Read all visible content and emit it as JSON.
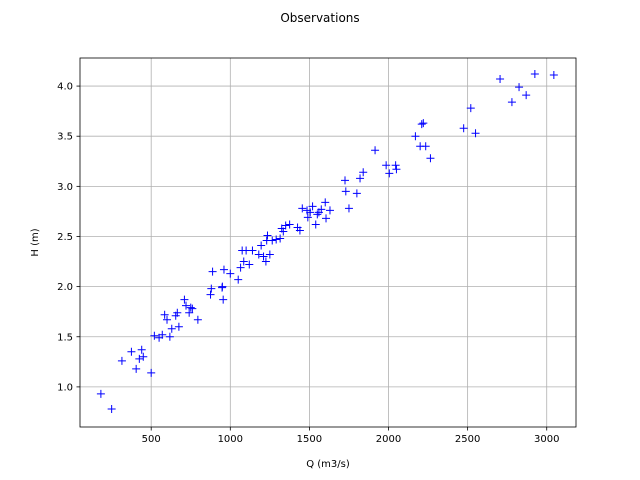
{
  "chart_data": {
    "type": "scatter",
    "title": "Observations",
    "xlabel": "Q (m3/s)",
    "ylabel": "H (m)",
    "xlim": [
      50,
      3185
    ],
    "ylim": [
      0.6,
      4.28
    ],
    "xticks": [
      500,
      1000,
      1500,
      2000,
      2500,
      3000
    ],
    "yticks": [
      1.0,
      1.5,
      2.0,
      2.5,
      3.0,
      3.5,
      4.0
    ],
    "xtick_labels": [
      "500",
      "1000",
      "1500",
      "2000",
      "2500",
      "3000"
    ],
    "ytick_labels": [
      "1.0",
      "1.5",
      "2.0",
      "2.5",
      "3.0",
      "3.5",
      "4.0"
    ],
    "grid": true,
    "marker": "+",
    "color": "#0000ff",
    "points": [
      [
        182,
        0.93
      ],
      [
        250,
        0.78
      ],
      [
        315,
        1.26
      ],
      [
        375,
        1.35
      ],
      [
        405,
        1.18
      ],
      [
        425,
        1.28
      ],
      [
        440,
        1.37
      ],
      [
        450,
        1.3
      ],
      [
        500,
        1.14
      ],
      [
        520,
        1.51
      ],
      [
        550,
        1.49
      ],
      [
        570,
        1.52
      ],
      [
        585,
        1.72
      ],
      [
        600,
        1.67
      ],
      [
        618,
        1.5
      ],
      [
        630,
        1.58
      ],
      [
        655,
        1.71
      ],
      [
        665,
        1.74
      ],
      [
        675,
        1.6
      ],
      [
        710,
        1.87
      ],
      [
        720,
        1.81
      ],
      [
        740,
        1.74
      ],
      [
        750,
        1.79
      ],
      [
        760,
        1.78
      ],
      [
        795,
        1.67
      ],
      [
        875,
        1.92
      ],
      [
        880,
        1.98
      ],
      [
        888,
        2.15
      ],
      [
        948,
        1.99
      ],
      [
        950,
        2.0
      ],
      [
        955,
        1.87
      ],
      [
        960,
        2.17
      ],
      [
        1000,
        2.13
      ],
      [
        1050,
        2.07
      ],
      [
        1065,
        2.19
      ],
      [
        1075,
        2.36
      ],
      [
        1085,
        2.25
      ],
      [
        1100,
        2.36
      ],
      [
        1120,
        2.22
      ],
      [
        1140,
        2.36
      ],
      [
        1180,
        2.32
      ],
      [
        1195,
        2.41
      ],
      [
        1210,
        2.3
      ],
      [
        1225,
        2.25
      ],
      [
        1230,
        2.46
      ],
      [
        1235,
        2.51
      ],
      [
        1250,
        2.32
      ],
      [
        1265,
        2.46
      ],
      [
        1290,
        2.47
      ],
      [
        1315,
        2.48
      ],
      [
        1325,
        2.58
      ],
      [
        1335,
        2.55
      ],
      [
        1350,
        2.61
      ],
      [
        1375,
        2.62
      ],
      [
        1425,
        2.59
      ],
      [
        1440,
        2.56
      ],
      [
        1455,
        2.78
      ],
      [
        1485,
        2.76
      ],
      [
        1490,
        2.69
      ],
      [
        1505,
        2.74
      ],
      [
        1520,
        2.8
      ],
      [
        1540,
        2.62
      ],
      [
        1550,
        2.72
      ],
      [
        1560,
        2.74
      ],
      [
        1575,
        2.77
      ],
      [
        1600,
        2.84
      ],
      [
        1605,
        2.68
      ],
      [
        1630,
        2.76
      ],
      [
        1725,
        3.06
      ],
      [
        1730,
        2.95
      ],
      [
        1750,
        2.78
      ],
      [
        1800,
        2.93
      ],
      [
        1820,
        3.08
      ],
      [
        1840,
        3.14
      ],
      [
        1915,
        3.36
      ],
      [
        1985,
        3.21
      ],
      [
        2005,
        3.13
      ],
      [
        2045,
        3.21
      ],
      [
        2050,
        3.17
      ],
      [
        2170,
        3.5
      ],
      [
        2200,
        3.4
      ],
      [
        2210,
        3.62
      ],
      [
        2220,
        3.63
      ],
      [
        2235,
        3.4
      ],
      [
        2265,
        3.28
      ],
      [
        2475,
        3.58
      ],
      [
        2520,
        3.78
      ],
      [
        2550,
        3.53
      ],
      [
        2705,
        4.07
      ],
      [
        2780,
        3.84
      ],
      [
        2825,
        3.99
      ],
      [
        2870,
        3.91
      ],
      [
        2925,
        4.12
      ],
      [
        3045,
        4.11
      ]
    ]
  }
}
